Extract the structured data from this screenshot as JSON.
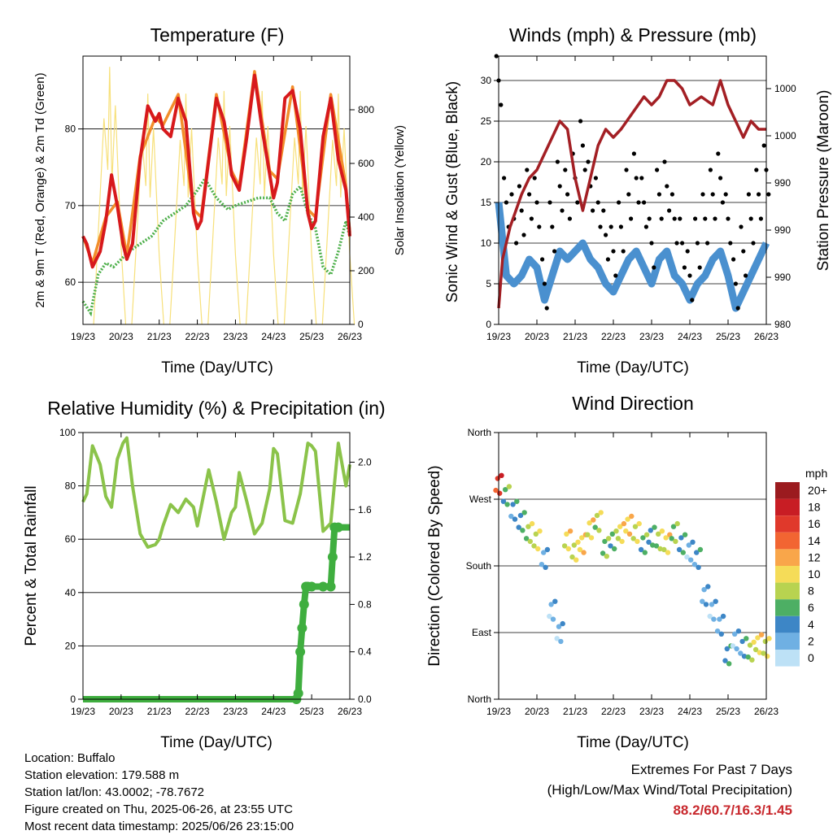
{
  "chart_data": [
    {
      "type": "line",
      "title": "Temperature (F)",
      "xlabel": "Time (Day/UTC)",
      "ylabel": "2m & 9m T (Red, Orange) & 2m Td (Green)",
      "y2label": "Solar Insolation (Yellow)",
      "x_ticks": [
        "19/23",
        "20/23",
        "21/23",
        "22/23",
        "23/23",
        "24/23",
        "25/23",
        "26/23"
      ],
      "ylim": [
        54.5,
        89.5
      ],
      "y_ticks": [
        60,
        70,
        80
      ],
      "y2lim": [
        0,
        1000
      ],
      "y2_ticks": [
        0,
        200,
        400,
        600,
        800
      ],
      "grid": true,
      "series": [
        {
          "name": "2m T",
          "color": "#d7191c",
          "x": [
            0,
            0.1,
            0.25,
            0.45,
            0.6,
            0.75,
            0.9,
            1.05,
            1.15,
            1.3,
            1.5,
            1.7,
            1.9,
            2.0,
            2.1,
            2.3,
            2.5,
            2.7,
            2.9,
            3.0,
            3.1,
            3.3,
            3.5,
            3.7,
            3.8,
            3.9,
            4.0,
            4.1,
            4.3,
            4.5,
            4.7,
            4.9,
            5.0,
            5.1,
            5.3,
            5.5,
            5.7,
            5.9,
            6.0,
            6.1,
            6.3,
            6.5,
            6.7,
            6.9,
            7.0
          ],
          "y": [
            66,
            65,
            62,
            64,
            68,
            74,
            70,
            65,
            63,
            65,
            76,
            83,
            81,
            82,
            80,
            79,
            84,
            81,
            69,
            67,
            68,
            76,
            84,
            81,
            78,
            74,
            73,
            72,
            79,
            87,
            80,
            74,
            71,
            73,
            84,
            85,
            80,
            69,
            67,
            68,
            79,
            84,
            76,
            72,
            66
          ]
        },
        {
          "name": "9m T",
          "color": "#f28e2b",
          "x": [
            0,
            0.25,
            0.6,
            0.9,
            1.15,
            1.5,
            1.9,
            2.1,
            2.5,
            2.9,
            3.1,
            3.5,
            3.9,
            4.1,
            4.5,
            4.9,
            5.1,
            5.5,
            5.9,
            6.1,
            6.5,
            6.9,
            7.0
          ],
          "y": [
            66,
            62.5,
            68.5,
            70.5,
            63.5,
            76.5,
            81.5,
            80.5,
            84.5,
            69.5,
            68.5,
            84.5,
            74.5,
            72.5,
            87.5,
            74.5,
            73.5,
            85.5,
            69.5,
            68.5,
            84.5,
            72.5,
            66.5
          ]
        },
        {
          "name": "2m Td",
          "color": "#4daf4a",
          "x": [
            0,
            0.2,
            0.4,
            0.6,
            0.8,
            1.0,
            1.2,
            1.5,
            1.8,
            2.1,
            2.4,
            2.7,
            3.0,
            3.2,
            3.5,
            3.8,
            4.0,
            4.3,
            4.6,
            4.9,
            5.1,
            5.3,
            5.5,
            5.7,
            5.9,
            6.1,
            6.3,
            6.5,
            6.7,
            6.9,
            7.0
          ],
          "y": [
            57.5,
            56,
            61,
            62.5,
            62,
            63,
            64,
            65,
            66,
            68,
            69,
            70,
            72,
            73.5,
            71,
            69.5,
            70,
            70.5,
            71,
            71,
            69,
            68,
            71.5,
            72.5,
            69,
            67,
            62,
            61,
            64,
            68,
            66
          ]
        },
        {
          "name": "Solar Insolation",
          "color": "#f7e07a",
          "axis": "y2",
          "peaks_x": [
            0.7,
            1.7,
            2.7,
            3.7,
            4.7,
            5.7,
            6.7
          ],
          "peaks_y": [
            960,
            860,
            860,
            870,
            870,
            870,
            860
          ]
        }
      ]
    },
    {
      "type": "scatter",
      "title": "Winds (mph) & Pressure (mb)",
      "xlabel": "Time (Day/UTC)",
      "ylabel": "Sonic Wind & Gust (Blue, Black)",
      "y2label": "Station Pressure (Maroon)",
      "x_ticks": [
        "19/23",
        "20/23",
        "21/23",
        "22/23",
        "23/23",
        "24/23",
        "25/23",
        "26/23"
      ],
      "ylim": [
        0,
        33
      ],
      "y_ticks": [
        0,
        5,
        10,
        15,
        20,
        25,
        30
      ],
      "y2_tick_labels": [
        "980",
        "990",
        "990",
        "990",
        "1000",
        "1000"
      ],
      "grid": true,
      "series": [
        {
          "name": "Sonic Wind",
          "color": "#4a90cf",
          "x": [
            0,
            0.2,
            0.4,
            0.6,
            0.8,
            1.0,
            1.2,
            1.4,
            1.6,
            1.8,
            2.0,
            2.2,
            2.4,
            2.6,
            2.8,
            3.0,
            3.2,
            3.4,
            3.6,
            3.8,
            4.0,
            4.2,
            4.4,
            4.6,
            4.8,
            5.0,
            5.2,
            5.4,
            5.6,
            5.8,
            6.0,
            6.2,
            6.4,
            6.6,
            6.8,
            7.0
          ],
          "y": [
            15,
            6,
            5,
            6,
            8,
            7,
            3,
            6,
            9,
            8,
            9,
            10,
            8,
            7,
            5,
            4,
            6,
            8,
            9,
            7,
            5,
            8,
            9,
            6,
            5,
            3,
            5,
            6,
            8,
            9,
            6,
            2,
            4,
            6,
            8,
            10
          ]
        },
        {
          "name": "Gust",
          "color": "#000000",
          "x": [
            0,
            0.2,
            0.4,
            0.6,
            0.8,
            1.0,
            1.2,
            1.4,
            1.6,
            1.8,
            2.0,
            2.2,
            2.4,
            2.6,
            2.8,
            3.0,
            3.2,
            3.4,
            3.6,
            3.8,
            4.0,
            4.2,
            4.4,
            4.6,
            4.8,
            5.0,
            5.2,
            5.4,
            5.6,
            5.8,
            6.0,
            6.2,
            6.4,
            6.6,
            6.8,
            7.0
          ],
          "y": [
            30,
            15,
            13,
            14,
            16,
            15,
            5,
            12,
            17,
            16,
            18,
            22,
            17,
            15,
            11,
            9,
            12,
            16,
            18,
            15,
            10,
            16,
            17,
            13,
            10,
            6,
            10,
            13,
            16,
            18,
            13,
            5,
            9,
            13,
            16,
            19
          ]
        },
        {
          "name": "Station Pressure",
          "color": "#a31f24",
          "x": [
            0,
            0.1,
            0.3,
            0.6,
            0.8,
            1.0,
            1.3,
            1.6,
            1.8,
            2.0,
            2.2,
            2.4,
            2.6,
            2.8,
            3.0,
            3.2,
            3.5,
            3.8,
            4.0,
            4.2,
            4.4,
            4.6,
            4.8,
            5.0,
            5.3,
            5.6,
            5.8,
            6.0,
            6.2,
            6.4,
            6.6,
            6.8,
            7.0
          ],
          "y": [
            2,
            8,
            12,
            16,
            18,
            19,
            22,
            25,
            24,
            18,
            14,
            18,
            22,
            24,
            23,
            24,
            26,
            28,
            27,
            28,
            30,
            30,
            29,
            27,
            28,
            27,
            30,
            27,
            25,
            23,
            25,
            24,
            24
          ],
          "y_units": "left-axis units"
        }
      ]
    },
    {
      "type": "line",
      "title": "Relative Humidity (%) & Precipitation (in)",
      "xlabel": "Time (Day/UTC)",
      "ylabel": "Percent & Total Rainfall",
      "x_ticks": [
        "19/23",
        "20/23",
        "21/23",
        "22/23",
        "23/23",
        "24/23",
        "25/23",
        "26/23"
      ],
      "ylim": [
        0,
        100
      ],
      "y_ticks": [
        0,
        20,
        40,
        60,
        80,
        100
      ],
      "y2lim": [
        0,
        2.25
      ],
      "y2_ticks": [
        "0.0",
        "0.4",
        "0.8",
        "1.2",
        "1.6",
        "2.0"
      ],
      "grid": true,
      "series": [
        {
          "name": "Relative Humidity",
          "color": "#8bc34a",
          "x": [
            0,
            0.1,
            0.25,
            0.45,
            0.6,
            0.75,
            0.9,
            1.05,
            1.15,
            1.3,
            1.5,
            1.7,
            1.9,
            2.0,
            2.1,
            2.3,
            2.5,
            2.7,
            2.9,
            3.0,
            3.1,
            3.3,
            3.5,
            3.7,
            3.8,
            3.9,
            4.0,
            4.1,
            4.3,
            4.5,
            4.7,
            4.9,
            5.0,
            5.1,
            5.3,
            5.5,
            5.7,
            5.9,
            6.0,
            6.1,
            6.3,
            6.5,
            6.7,
            6.9,
            7.0
          ],
          "y": [
            74,
            77,
            95,
            88,
            76,
            72,
            90,
            96,
            98,
            80,
            62,
            57,
            58,
            60,
            65,
            73,
            70,
            75,
            72,
            65,
            72,
            86,
            74,
            60,
            65,
            70,
            72,
            85,
            74,
            62,
            66,
            79,
            94,
            92,
            67,
            66,
            77,
            96,
            95,
            93,
            63,
            66,
            96,
            80,
            88
          ]
        },
        {
          "name": "Total Rainfall",
          "color": "#3fae3f",
          "axis": "y2",
          "x": [
            0,
            5.6,
            5.65,
            5.7,
            5.75,
            5.8,
            5.85,
            5.9,
            6.0,
            6.3,
            6.5,
            6.55,
            6.6,
            6.7,
            7.0
          ],
          "y": [
            0,
            0,
            0.05,
            0.4,
            0.6,
            0.8,
            0.95,
            0.95,
            0.95,
            0.95,
            0.95,
            1.2,
            1.45,
            1.45,
            1.45
          ]
        }
      ]
    },
    {
      "type": "scatter",
      "title": "Wind Direction",
      "xlabel": "Time (Day/UTC)",
      "ylabel": "Direction (Colored By Speed)",
      "x_ticks": [
        "19/23",
        "20/23",
        "21/23",
        "22/23",
        "23/23",
        "24/23",
        "25/23",
        "26/23"
      ],
      "y_ticks": [
        "North",
        "East",
        "South",
        "West",
        "North"
      ],
      "ylim": [
        0,
        360
      ],
      "grid": true,
      "colorbar": {
        "title": "mph",
        "labels": [
          "20+",
          "18",
          "16",
          "14",
          "12",
          "10",
          "8",
          "6",
          "4",
          "2",
          "0"
        ],
        "colors": [
          "#9b1b1f",
          "#c81d24",
          "#e0392b",
          "#f26532",
          "#f9a64a",
          "#f5dc58",
          "#b8d350",
          "#4daf64",
          "#3d86c6",
          "#6fb0e3",
          "#bde1f6"
        ]
      },
      "series": [
        {
          "name": "Wind Direction",
          "x": [
            0,
            0.2,
            0.4,
            0.6,
            0.8,
            1.0,
            1.2,
            1.4,
            1.6,
            1.8,
            2.0,
            2.2,
            2.4,
            2.6,
            2.8,
            3.0,
            3.2,
            3.4,
            3.6,
            3.8,
            4.0,
            4.2,
            4.4,
            4.6,
            4.8,
            5.0,
            5.2,
            5.4,
            5.6,
            5.8,
            6.0,
            6.2,
            6.4,
            6.6,
            6.8,
            7.0
          ],
          "y": [
            290,
            275,
            255,
            240,
            225,
            215,
            190,
            120,
            90,
            215,
            200,
            210,
            230,
            240,
            205,
            215,
            225,
            235,
            225,
            210,
            220,
            215,
            210,
            225,
            210,
            200,
            190,
            140,
            120,
            100,
            60,
            80,
            70,
            65,
            75,
            70
          ],
          "speed": [
            16,
            6,
            4,
            5,
            8,
            9,
            3,
            2,
            2,
            10,
            9,
            11,
            10,
            8,
            7,
            6,
            10,
            11,
            9,
            6,
            5,
            8,
            10,
            7,
            5,
            2,
            4,
            3,
            2,
            3,
            5,
            2,
            4,
            8,
            10,
            9
          ]
        }
      ]
    }
  ],
  "info": {
    "location": "Location: Buffalo",
    "elevation": "Station elevation: 179.588 m",
    "latlon": "Station lat/lon: 43.0002; -78.7672",
    "created": "Figure created on Thu, 2025-06-26, at 23:55 UTC",
    "recent": "Most recent data timestamp: 2025/06/26 23:15:00"
  },
  "extremes": {
    "title": "Extremes For Past 7 Days",
    "subtitle": "(High/Low/Max Wind/Total Precipitation)",
    "values": "88.2/60.7/16.3/1.45"
  }
}
